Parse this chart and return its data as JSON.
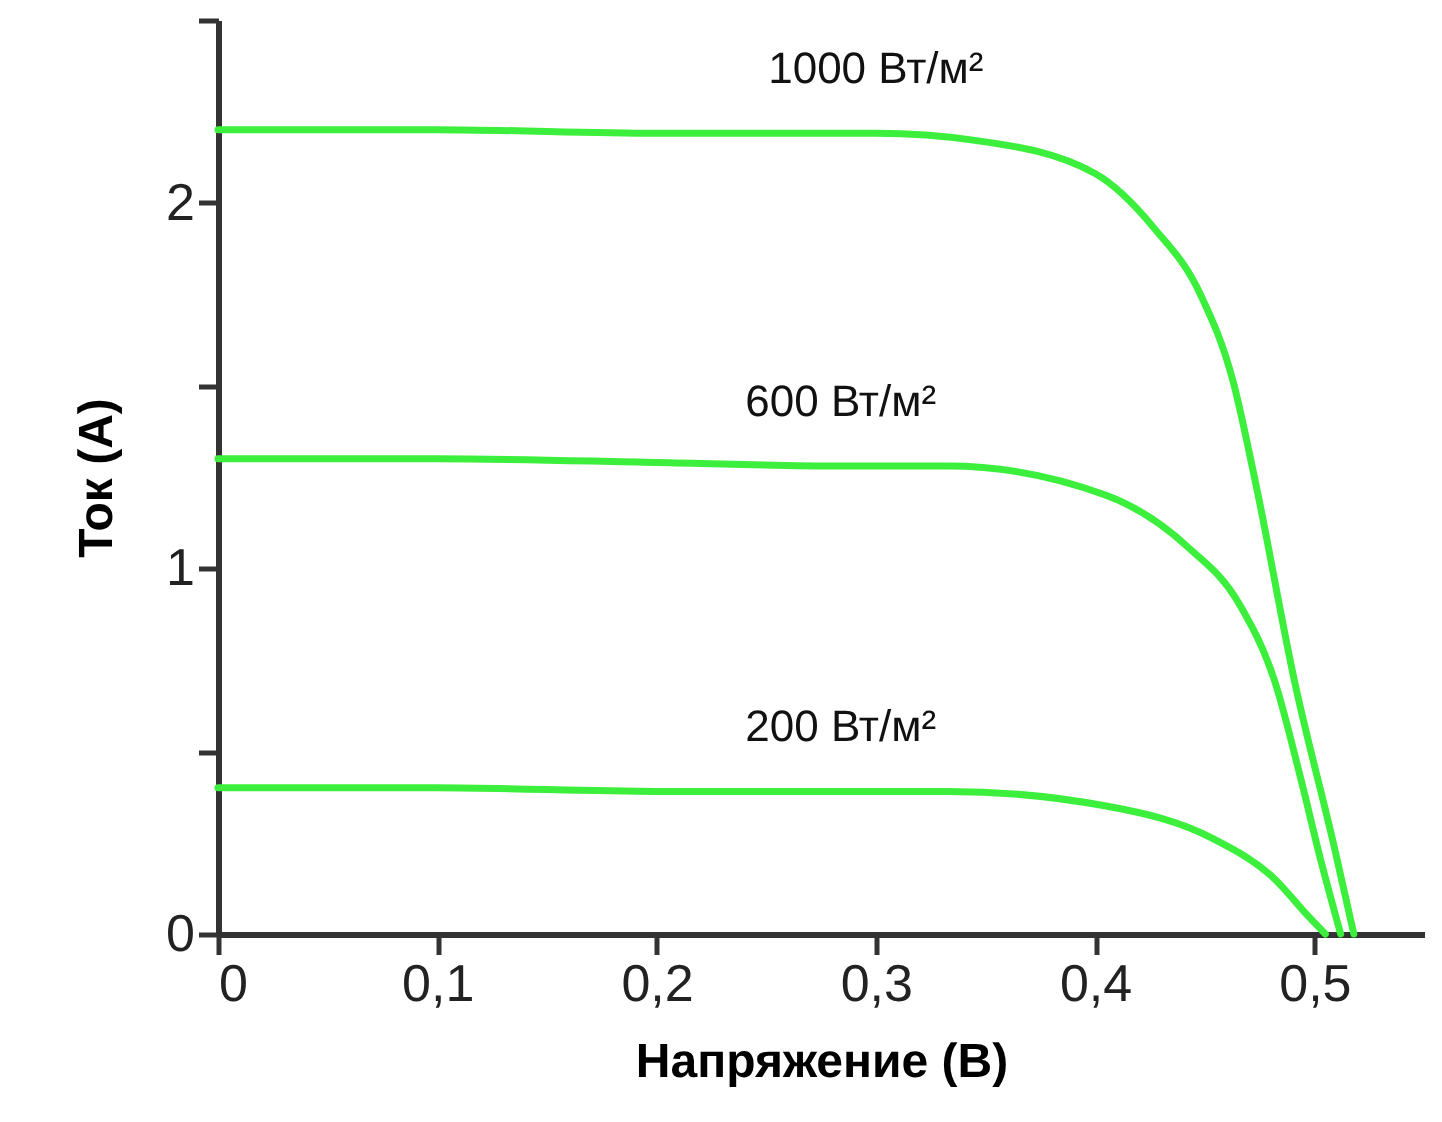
{
  "chart_data": {
    "type": "line",
    "xlabel": "Напряжение (В)",
    "ylabel": "Ток (A)",
    "xlim": [
      0,
      0.55
    ],
    "ylim": [
      0,
      2.5
    ],
    "xticks": [
      0,
      {
        "value": 0.1,
        "label": "0,1"
      },
      {
        "value": 0.2,
        "label": "0,2"
      },
      {
        "value": 0.3,
        "label": "0,3"
      },
      {
        "value": 0.4,
        "label": "0,4"
      },
      {
        "value": 0.5,
        "label": "0,5"
      }
    ],
    "yticks": [
      0,
      {
        "value": 0.5,
        "label": null
      },
      1,
      {
        "value": 1.5,
        "label": null
      },
      2,
      {
        "value": 2.5,
        "label": null
      }
    ],
    "grid": false,
    "marker": "none",
    "line_style": "solid",
    "series": [
      {
        "name": "1000 Вт/м²",
        "color": "#3cef3c",
        "x": [
          0,
          0.1,
          0.2,
          0.3,
          0.346,
          0.4,
          0.427,
          0.448,
          0.463,
          0.473,
          0.491,
          0.509,
          0.518
        ],
        "values": [
          2.2,
          2.2,
          2.19,
          2.19,
          2.17,
          2.08,
          1.93,
          1.75,
          1.51,
          1.24,
          0.69,
          0.24,
          0
        ]
      },
      {
        "name": "600 Вт/м²",
        "color": "#3cef3c",
        "x": [
          0,
          0.1,
          0.2,
          0.284,
          0.333,
          0.405,
          0.442,
          0.466,
          0.482,
          0.494,
          0.503,
          0.512
        ],
        "values": [
          1.3,
          1.3,
          1.29,
          1.28,
          1.28,
          1.2,
          1.06,
          0.9,
          0.69,
          0.42,
          0.2,
          0
        ]
      },
      {
        "name": "200 Вт/м²",
        "color": "#3cef3c",
        "x": [
          0,
          0.1,
          0.2,
          0.284,
          0.333,
          0.405,
          0.454,
          0.482,
          0.497,
          0.505
        ],
        "values": [
          0.4,
          0.4,
          0.39,
          0.39,
          0.39,
          0.35,
          0.26,
          0.15,
          0.05,
          0
        ]
      }
    ]
  }
}
